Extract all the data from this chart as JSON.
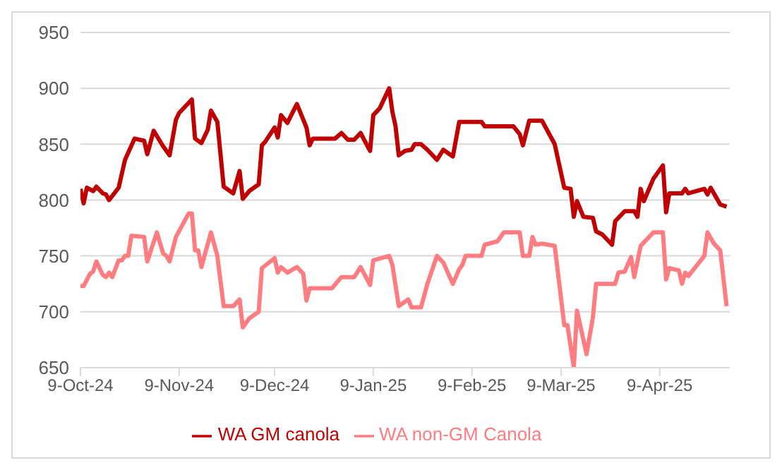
{
  "chart_data": {
    "type": "line",
    "xlim": [
      "2024-10-09",
      "2025-05-01"
    ],
    "xticks": [
      {
        "value": "2024-10-09",
        "label": "9-Oct-24"
      },
      {
        "value": "2024-11-09",
        "label": "9-Nov-24"
      },
      {
        "value": "2024-12-09",
        "label": "9-Dec-24"
      },
      {
        "value": "2025-01-09",
        "label": "9-Jan-25"
      },
      {
        "value": "2025-02-09",
        "label": "9-Feb-25"
      },
      {
        "value": "2025-03-09",
        "label": "9-Mar-25"
      },
      {
        "value": "2025-04-09",
        "label": "9-Apr-25"
      }
    ],
    "ylim": [
      650,
      950
    ],
    "yticks": [
      650,
      700,
      750,
      800,
      850,
      900,
      950
    ],
    "grid": "y",
    "legend": "bottom",
    "marker": "none",
    "line_style": "solid",
    "series": [
      {
        "name": "WA GM canola",
        "color": "#c00000",
        "x": [
          "2024-10-09",
          "2024-10-10",
          "2024-10-11",
          "2024-10-13",
          "2024-10-14",
          "2024-10-16",
          "2024-10-17",
          "2024-10-18",
          "2024-10-21",
          "2024-10-23",
          "2024-10-26",
          "2024-10-29",
          "2024-10-30",
          "2024-11-01",
          "2024-11-04",
          "2024-11-05",
          "2024-11-06",
          "2024-11-08",
          "2024-11-09",
          "2024-11-13",
          "2024-11-14",
          "2024-11-16",
          "2024-11-18",
          "2024-11-19",
          "2024-11-21",
          "2024-11-23",
          "2024-11-26",
          "2024-11-28",
          "2024-11-29",
          "2024-12-01",
          "2024-12-04",
          "2024-12-05",
          "2024-12-06",
          "2024-12-09",
          "2024-12-10",
          "2024-12-11",
          "2024-12-13",
          "2024-12-16",
          "2024-12-19",
          "2024-12-20",
          "2024-12-21",
          "2024-12-28",
          "2024-12-30",
          "2025-01-01",
          "2025-01-03",
          "2025-01-05",
          "2025-01-08",
          "2025-01-09",
          "2025-01-11",
          "2025-01-14",
          "2025-01-15",
          "2025-01-16",
          "2025-01-17",
          "2025-01-19",
          "2025-01-21",
          "2025-01-22",
          "2025-01-24",
          "2025-01-26",
          "2025-01-29",
          "2025-01-31",
          "2025-02-03",
          "2025-02-05",
          "2025-02-12",
          "2025-02-13",
          "2025-02-22",
          "2025-02-24",
          "2025-02-25",
          "2025-02-27",
          "2025-03-03",
          "2025-03-07",
          "2025-03-10",
          "2025-03-12",
          "2025-03-13",
          "2025-03-14",
          "2025-03-16",
          "2025-03-19",
          "2025-03-20",
          "2025-03-22",
          "2025-03-25",
          "2025-03-26",
          "2025-03-29",
          "2025-04-01",
          "2025-04-02",
          "2025-04-03",
          "2025-04-04",
          "2025-04-07",
          "2025-04-10",
          "2025-04-11",
          "2025-04-12",
          "2025-04-16",
          "2025-04-17",
          "2025-04-18",
          "2025-04-23",
          "2025-04-24",
          "2025-04-25",
          "2025-04-28",
          "2025-04-30"
        ],
        "values": [
          810,
          797,
          811,
          808,
          812,
          806,
          805,
          800,
          811,
          836,
          855,
          853,
          841,
          862,
          848,
          844,
          840,
          872,
          878,
          890,
          855,
          851,
          863,
          880,
          870,
          812,
          806,
          826,
          801,
          808,
          814,
          849,
          852,
          865,
          856,
          876,
          869,
          886,
          865,
          849,
          855,
          855,
          860,
          854,
          854,
          860,
          844,
          876,
          882,
          900,
          879,
          866,
          840,
          844,
          845,
          850,
          850,
          845,
          836,
          845,
          839,
          870,
          870,
          866,
          866,
          859,
          849,
          871,
          871,
          850,
          811,
          810,
          785,
          799,
          785,
          784,
          772,
          769,
          760,
          781,
          790,
          790,
          785,
          810,
          799,
          819,
          831,
          789,
          806,
          806,
          810,
          806,
          810,
          805,
          811,
          796,
          794
        ]
      },
      {
        "name": "WA non-GM Canola",
        "color": "#ff7c80",
        "x": [
          "2024-10-09",
          "2024-10-10",
          "2024-10-12",
          "2024-10-13",
          "2024-10-14",
          "2024-10-16",
          "2024-10-17",
          "2024-10-18",
          "2024-10-19",
          "2024-10-21",
          "2024-10-22",
          "2024-10-23",
          "2024-10-24",
          "2024-10-25",
          "2024-10-29",
          "2024-10-30",
          "2024-11-02",
          "2024-11-04",
          "2024-11-05",
          "2024-11-06",
          "2024-11-08",
          "2024-11-12",
          "2024-11-13",
          "2024-11-14",
          "2024-11-15",
          "2024-11-16",
          "2024-11-19",
          "2024-11-21",
          "2024-11-23",
          "2024-11-26",
          "2024-11-28",
          "2024-11-29",
          "2024-12-01",
          "2024-12-04",
          "2024-12-05",
          "2024-12-09",
          "2024-12-10",
          "2024-12-11",
          "2024-12-13",
          "2024-12-16",
          "2024-12-18",
          "2024-12-19",
          "2024-12-20",
          "2024-12-27",
          "2024-12-30",
          "2025-01-03",
          "2025-01-05",
          "2025-01-08",
          "2025-01-09",
          "2025-01-14",
          "2025-01-15",
          "2025-01-17",
          "2025-01-20",
          "2025-01-21",
          "2025-01-24",
          "2025-01-26",
          "2025-01-29",
          "2025-01-31",
          "2025-02-03",
          "2025-02-05",
          "2025-02-06",
          "2025-02-07",
          "2025-02-12",
          "2025-02-13",
          "2025-02-17",
          "2025-02-19",
          "2025-02-24",
          "2025-02-25",
          "2025-02-27",
          "2025-02-28",
          "2025-03-01",
          "2025-03-03",
          "2025-03-07",
          "2025-03-10",
          "2025-03-11",
          "2025-03-13",
          "2025-03-14",
          "2025-03-17",
          "2025-03-19",
          "2025-03-20",
          "2025-03-26",
          "2025-03-27",
          "2025-03-29",
          "2025-03-31",
          "2025-04-01",
          "2025-04-03",
          "2025-04-07",
          "2025-04-10",
          "2025-04-11",
          "2025-04-12",
          "2025-04-15",
          "2025-04-16",
          "2025-04-17",
          "2025-04-18",
          "2025-04-23",
          "2025-04-24",
          "2025-04-26",
          "2025-04-28",
          "2025-04-30"
        ],
        "values": [
          723,
          723,
          734,
          736,
          745,
          733,
          731,
          735,
          731,
          746,
          746,
          750,
          750,
          768,
          767,
          745,
          771,
          752,
          750,
          745,
          767,
          788,
          788,
          755,
          755,
          740,
          771,
          750,
          705,
          705,
          711,
          686,
          694,
          700,
          739,
          748,
          735,
          740,
          735,
          740,
          734,
          710,
          721,
          721,
          731,
          731,
          740,
          724,
          746,
          750,
          742,
          705,
          711,
          704,
          704,
          725,
          750,
          744,
          725,
          738,
          742,
          750,
          750,
          760,
          763,
          771,
          771,
          750,
          750,
          767,
          760,
          761,
          759,
          688,
          688,
          650,
          701,
          662,
          695,
          725,
          725,
          735,
          736,
          749,
          731,
          759,
          771,
          771,
          729,
          739,
          737,
          725,
          735,
          732,
          750,
          771,
          761,
          755,
          705
        ]
      }
    ]
  }
}
